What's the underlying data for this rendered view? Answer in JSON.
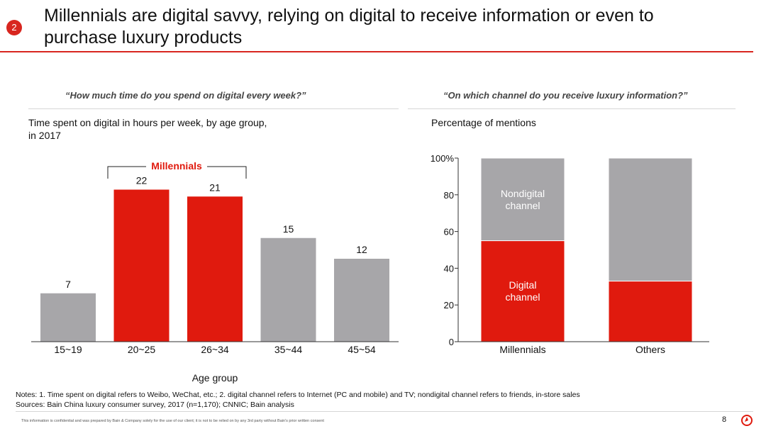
{
  "header": {
    "badge": "2",
    "title": "Millennials are digital savvy, relying on digital to receive information or even to purchase luxury products"
  },
  "left_panel": {
    "question": "“How much time do you spend on digital every week?”",
    "subtitle": "Time spent on digital in hours per week, by age group, in 2017",
    "bracket_label": "Millennials"
  },
  "right_panel": {
    "question": "“On which channel do you receive luxury information?”",
    "subtitle": "Percentage of mentions",
    "segment_labels": [
      "Nondigital channel",
      "Digital channel"
    ]
  },
  "chart_data": [
    {
      "type": "bar",
      "title": "Time spent on digital in hours per week, by age group, in 2017",
      "xlabel": "Age group",
      "ylabel": "",
      "categories": [
        "15~19",
        "20~25",
        "26~34",
        "35~44",
        "45~54"
      ],
      "values": [
        7,
        22,
        21,
        15,
        12
      ],
      "highlight": [
        false,
        true,
        true,
        false,
        false
      ],
      "ylim": [
        0,
        25
      ],
      "colors": {
        "highlight": "#e01a0e",
        "default": "#a7a6a9"
      },
      "annotation": "Millennials"
    },
    {
      "type": "bar",
      "stacked": true,
      "title": "Percentage of mentions",
      "categories": [
        "Millennials",
        "Others"
      ],
      "series": [
        {
          "name": "Digital channel",
          "values": [
            55,
            33
          ],
          "color": "#e01a0e"
        },
        {
          "name": "Nondigital channel",
          "values": [
            45,
            67
          ],
          "color": "#a7a6a9"
        }
      ],
      "ylim": [
        0,
        100
      ],
      "yticks": [
        "0",
        "20",
        "40",
        "60",
        "80",
        "100%"
      ]
    }
  ],
  "notes": {
    "line1": "Notes: 1. Time spent on digital refers to Weibo, WeChat, etc.; 2. digital channel refers to Internet (PC and mobile) and TV;  nondigital channel refers to friends, in-store sales",
    "line2": "Sources: Bain China luxury consumer survey, 2017 (n=1,170); CNNIC; Bain analysis"
  },
  "footer": {
    "confidential": "This information is confidential and was prepared by Bain & Company solely for the use of our client; it is not to be relied on by any 3rd party without Bain's prior written consent",
    "page_number": "8"
  }
}
